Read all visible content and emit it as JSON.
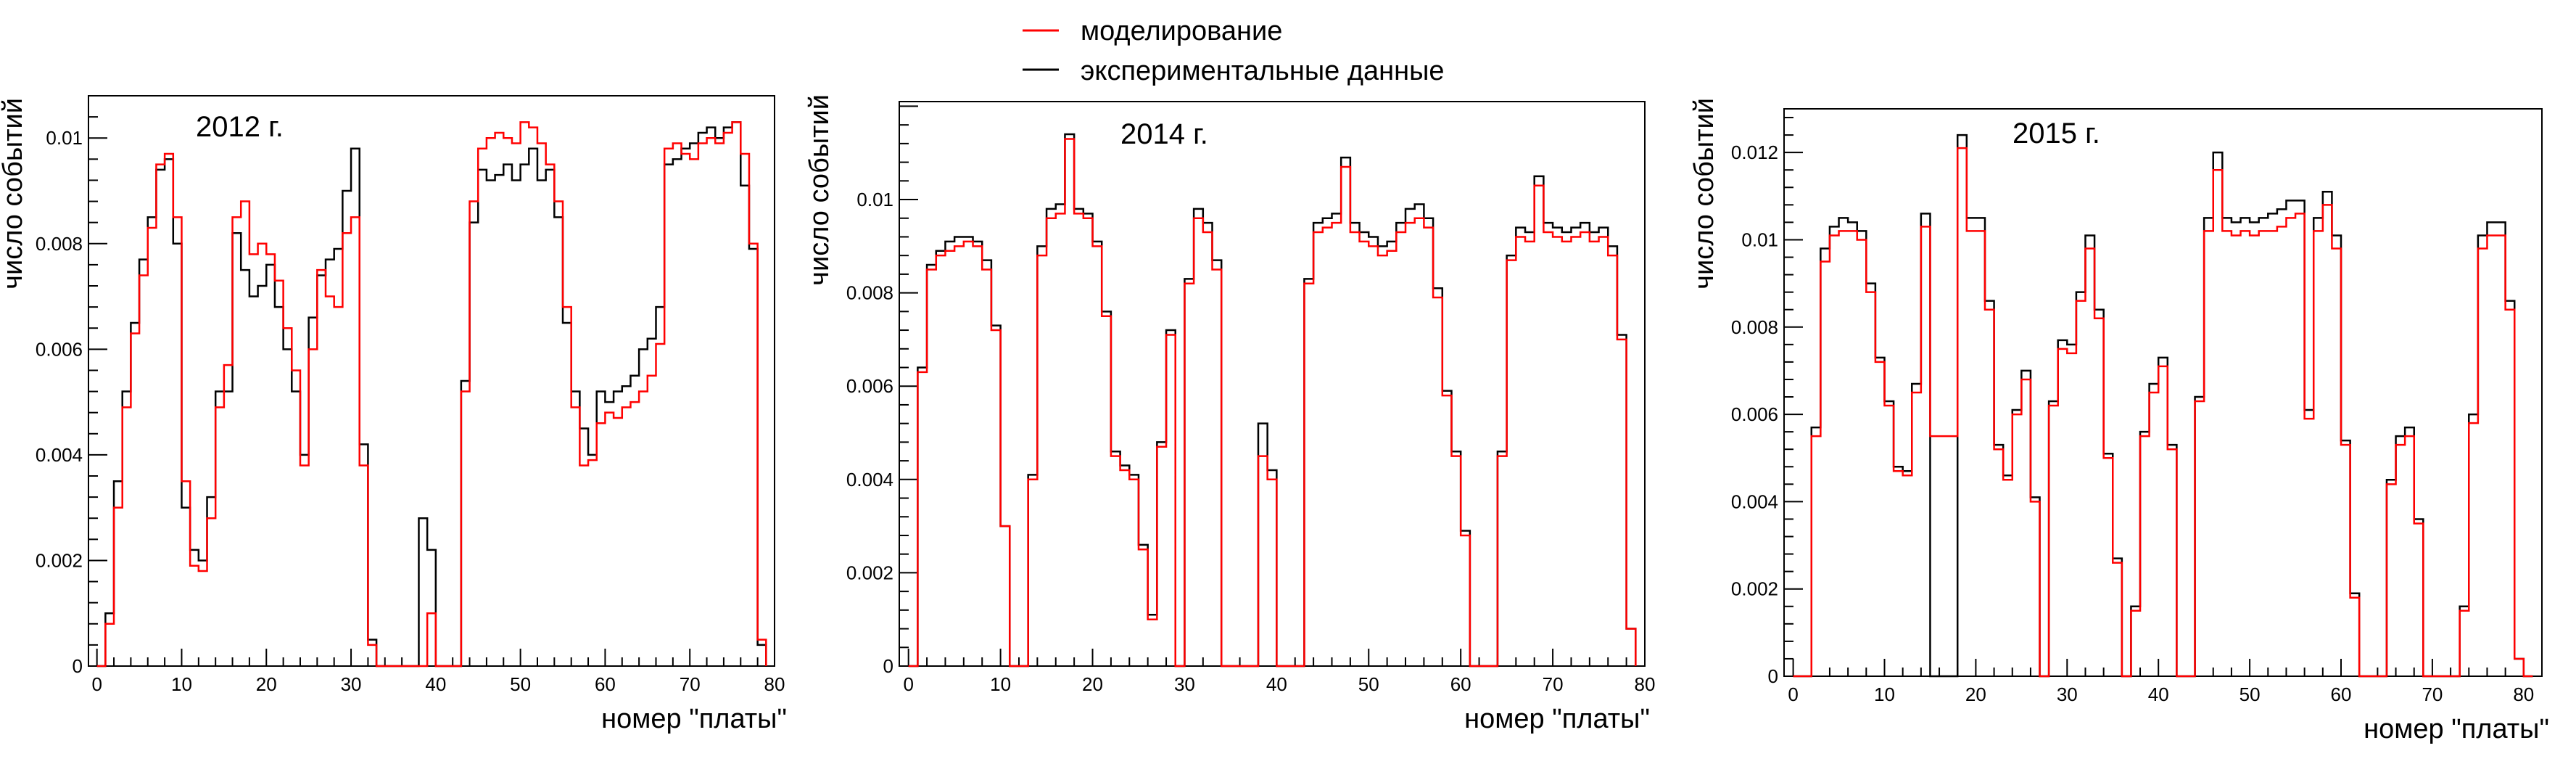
{
  "legend": {
    "sim_label": "моделирование",
    "exp_label": "экспериментальные данные",
    "sim_color": "#ff0000",
    "exp_color": "#000000"
  },
  "chart_data": [
    {
      "type": "histogram",
      "title": "2012 г.",
      "xlabel": "номер \"платы\"",
      "ylabel": "число событий",
      "xlim": [
        -1,
        80
      ],
      "ylim": [
        0,
        0.0108
      ],
      "xticks": [
        0,
        10,
        20,
        30,
        40,
        50,
        60,
        70,
        80
      ],
      "yticks": [
        0,
        0.002,
        0.004,
        0.006,
        0.008,
        0.01
      ],
      "ytick_labels": [
        "0",
        "0.002",
        "0.004",
        "0.006",
        "0.008",
        "0.01"
      ],
      "series": [
        {
          "name": "моделирование",
          "color": "#ff0000",
          "values": [
            0,
            0.0008,
            0.003,
            0.0049,
            0.0063,
            0.0074,
            0.0083,
            0.0095,
            0.0097,
            0.0085,
            0.0035,
            0.0019,
            0.0018,
            0.0028,
            0.0049,
            0.0057,
            0.0085,
            0.0088,
            0.0078,
            0.008,
            0.0078,
            0.0073,
            0.0064,
            0.0056,
            0.0038,
            0.006,
            0.0075,
            0.007,
            0.0068,
            0.0082,
            0.0085,
            0.0038,
            0.0004,
            0,
            0,
            0,
            0,
            0,
            0,
            0.001,
            0,
            0,
            0,
            0.0052,
            0.0088,
            0.0098,
            0.01,
            0.0101,
            0.01,
            0.0099,
            0.0103,
            0.0102,
            0.0099,
            0.0095,
            0.0088,
            0.0068,
            0.0049,
            0.0038,
            0.0039,
            0.0046,
            0.0048,
            0.0047,
            0.0049,
            0.005,
            0.0052,
            0.0055,
            0.0061,
            0.0098,
            0.0099,
            0.0097,
            0.0096,
            0.0099,
            0.01,
            0.0099,
            0.0101,
            0.0103,
            0.0097,
            0.008,
            0.0005
          ]
        },
        {
          "name": "экспериментальные данные",
          "color": "#000000",
          "values": [
            0,
            0.001,
            0.0035,
            0.0052,
            0.0065,
            0.0077,
            0.0085,
            0.0094,
            0.0096,
            0.008,
            0.003,
            0.0022,
            0.002,
            0.0032,
            0.0052,
            0.0052,
            0.0082,
            0.0075,
            0.007,
            0.0072,
            0.0076,
            0.0068,
            0.006,
            0.0052,
            0.004,
            0.0066,
            0.0074,
            0.0077,
            0.0079,
            0.009,
            0.0098,
            0.0042,
            0.0005,
            0,
            0,
            0,
            0,
            0,
            0.0028,
            0.0022,
            0,
            0,
            0,
            0.0054,
            0.0084,
            0.0094,
            0.0092,
            0.0093,
            0.0095,
            0.0092,
            0.0095,
            0.0098,
            0.0092,
            0.0094,
            0.0085,
            0.0065,
            0.0052,
            0.0045,
            0.004,
            0.0052,
            0.005,
            0.0052,
            0.0053,
            0.0055,
            0.006,
            0.0062,
            0.0068,
            0.0095,
            0.0096,
            0.0098,
            0.0099,
            0.0101,
            0.0102,
            0.01,
            0.0102,
            0.0103,
            0.0091,
            0.0079,
            0.0004
          ]
        }
      ]
    },
    {
      "type": "histogram",
      "title": "2014 г.",
      "xlabel": "номер \"платы\"",
      "ylabel": "число событий",
      "xlim": [
        -1,
        80
      ],
      "ylim": [
        0,
        0.0121
      ],
      "xticks": [
        0,
        10,
        20,
        30,
        40,
        50,
        60,
        70,
        80
      ],
      "yticks": [
        0,
        0.002,
        0.004,
        0.006,
        0.008,
        0.01
      ],
      "ytick_labels": [
        "0",
        "0.002",
        "0.004",
        "0.006",
        "0.008",
        "0.01"
      ],
      "series": [
        {
          "name": "моделирование",
          "color": "#ff0000",
          "values": [
            0,
            0.0063,
            0.0085,
            0.0088,
            0.0089,
            0.009,
            0.0091,
            0.009,
            0.0085,
            0.0072,
            0.003,
            0,
            0,
            0.004,
            0.0088,
            0.0096,
            0.0097,
            0.0113,
            0.0097,
            0.0096,
            0.009,
            0.0075,
            0.0045,
            0.0042,
            0.004,
            0.0025,
            0.001,
            0.0047,
            0.0071,
            0,
            0.0082,
            0.0096,
            0.0093,
            0.0085,
            0,
            0,
            0,
            0,
            0.0045,
            0.004,
            0,
            0,
            0,
            0.0082,
            0.0093,
            0.0094,
            0.0095,
            0.0107,
            0.0093,
            0.0091,
            0.009,
            0.0088,
            0.0089,
            0.0093,
            0.0095,
            0.0096,
            0.0094,
            0.0079,
            0.0058,
            0.0045,
            0.0028,
            0,
            0,
            0,
            0.0045,
            0.0087,
            0.0092,
            0.0091,
            0.0103,
            0.0093,
            0.0092,
            0.0091,
            0.0092,
            0.0093,
            0.0091,
            0.0092,
            0.0088,
            0.007,
            0.0008
          ]
        },
        {
          "name": "экспериментальные данные",
          "color": "#000000",
          "values": [
            0,
            0.0064,
            0.0086,
            0.0089,
            0.0091,
            0.0092,
            0.0092,
            0.0091,
            0.0087,
            0.0073,
            0.003,
            0,
            0,
            0.0041,
            0.009,
            0.0098,
            0.0099,
            0.0114,
            0.0098,
            0.0097,
            0.0091,
            0.0076,
            0.0046,
            0.0043,
            0.0041,
            0.0026,
            0.0011,
            0.0048,
            0.0072,
            0,
            0.0083,
            0.0098,
            0.0095,
            0.0087,
            0,
            0,
            0,
            0,
            0.0052,
            0.0042,
            0,
            0,
            0,
            0.0083,
            0.0095,
            0.0096,
            0.0097,
            0.0109,
            0.0095,
            0.0093,
            0.0092,
            0.009,
            0.0091,
            0.0095,
            0.0098,
            0.0099,
            0.0096,
            0.0081,
            0.0059,
            0.0046,
            0.0029,
            0,
            0,
            0,
            0.0046,
            0.0088,
            0.0094,
            0.0093,
            0.0105,
            0.0095,
            0.0094,
            0.0093,
            0.0094,
            0.0095,
            0.0093,
            0.0094,
            0.009,
            0.0071,
            0.0008
          ]
        }
      ]
    },
    {
      "type": "histogram",
      "title": "2015 г.",
      "xlabel": "номер \"платы\"",
      "ylabel": "число событий",
      "xlim": [
        -1,
        82
      ],
      "ylim": [
        0,
        0.013
      ],
      "xticks": [
        0,
        10,
        20,
        30,
        40,
        50,
        60,
        70,
        80
      ],
      "yticks": [
        0,
        0.002,
        0.004,
        0.006,
        0.008,
        0.01,
        0.012
      ],
      "ytick_labels": [
        "0",
        "0.002",
        "0.004",
        "0.006",
        "0.008",
        "0.01",
        "0.012"
      ],
      "series": [
        {
          "name": "моделирование",
          "color": "#ff0000",
          "values": [
            0,
            0,
            0.0055,
            0.0095,
            0.0101,
            0.0102,
            0.0102,
            0.01,
            0.0088,
            0.0072,
            0.0062,
            0.0047,
            0.0046,
            0.0065,
            0.0103,
            0.0055,
            0.0055,
            0.0055,
            0.0121,
            0.0102,
            0.0102,
            0.0084,
            0.0052,
            0.0045,
            0.006,
            0.0068,
            0.004,
            0,
            0.0062,
            0.0075,
            0.0074,
            0.0086,
            0.0098,
            0.0082,
            0.005,
            0.0026,
            0,
            0.0015,
            0.0055,
            0.0065,
            0.0071,
            0.0052,
            0,
            0,
            0.0063,
            0.0102,
            0.0116,
            0.0102,
            0.0101,
            0.0102,
            0.0101,
            0.0102,
            0.0102,
            0.0103,
            0.0105,
            0.0106,
            0.0059,
            0.0102,
            0.0108,
            0.0098,
            0.0053,
            0.0018,
            0,
            0,
            0,
            0.0044,
            0.0053,
            0.0055,
            0.0035,
            0,
            0,
            0,
            0,
            0.0015,
            0.0058,
            0.0098,
            0.0101,
            0.0101,
            0.0084,
            0.0004,
            0
          ]
        },
        {
          "name": "экспериментальные данные",
          "color": "#000000",
          "values": [
            0,
            0,
            0.0057,
            0.0098,
            0.0103,
            0.0105,
            0.0104,
            0.0102,
            0.009,
            0.0073,
            0.0063,
            0.0048,
            0.0047,
            0.0067,
            0.0106,
            0,
            0,
            0,
            0.0124,
            0.0105,
            0.0105,
            0.0086,
            0.0053,
            0.0046,
            0.0061,
            0.007,
            0.0041,
            0,
            0.0063,
            0.0077,
            0.0076,
            0.0088,
            0.0101,
            0.0084,
            0.0051,
            0.0027,
            0,
            0.0016,
            0.0056,
            0.0067,
            0.0073,
            0.0053,
            0,
            0,
            0.0064,
            0.0105,
            0.012,
            0.0105,
            0.0104,
            0.0105,
            0.0104,
            0.0105,
            0.0106,
            0.0107,
            0.0109,
            0.0109,
            0.0061,
            0.0105,
            0.0111,
            0.0101,
            0.0054,
            0.0019,
            0,
            0,
            0,
            0.0045,
            0.0055,
            0.0057,
            0.0036,
            0,
            0,
            0,
            0,
            0.0016,
            0.006,
            0.0101,
            0.0104,
            0.0104,
            0.0086,
            0.0004,
            0
          ]
        }
      ]
    }
  ]
}
